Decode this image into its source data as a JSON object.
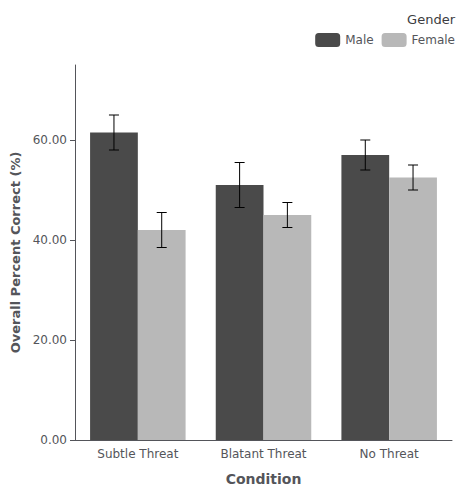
{
  "chart_data": {
    "type": "bar",
    "categories": [
      "Subtle Threat",
      "Blatant Threat",
      "No Threat"
    ],
    "series": [
      {
        "name": "Male",
        "color": "#4a4a4a",
        "values": [
          61.5,
          51.0,
          57.0
        ],
        "errors": [
          3.5,
          4.5,
          3.0
        ]
      },
      {
        "name": "Female",
        "color": "#b8b8b8",
        "values": [
          42.0,
          45.0,
          52.5
        ],
        "errors": [
          3.5,
          2.5,
          2.5
        ]
      }
    ],
    "xlabel": "Condition",
    "ylabel": "Overall Percent Correct (%)",
    "legend_title": "Gender",
    "legend": "upper right",
    "ylim": [
      0,
      75
    ],
    "yticks": [
      {
        "value": 0,
        "label": "0.00"
      },
      {
        "value": 20,
        "label": "20.00"
      },
      {
        "value": 40,
        "label": "40.00"
      },
      {
        "value": 60,
        "label": "60.00"
      }
    ],
    "grid": false
  }
}
